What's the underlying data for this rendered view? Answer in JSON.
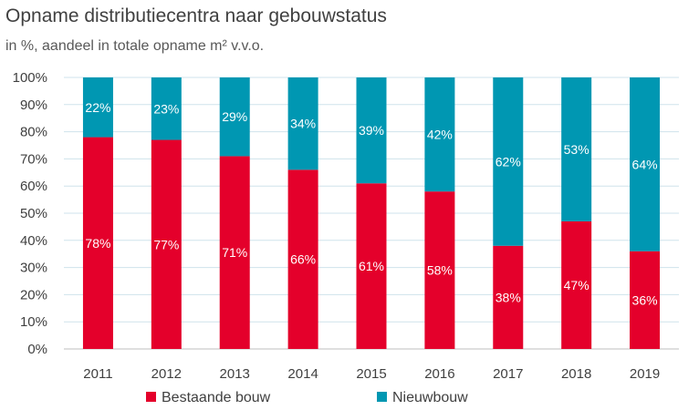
{
  "chart_data": {
    "type": "bar",
    "stacked": true,
    "title": "Opname distributiecentra naar gebouwstatus",
    "subtitle": "in %, aandeel in totale opname m² v.v.o.",
    "categories": [
      "2011",
      "2012",
      "2013",
      "2014",
      "2015",
      "2016",
      "2017",
      "2018",
      "2019"
    ],
    "series": [
      {
        "name": "Bestaande bouw",
        "color": "#e4002b",
        "values": [
          78,
          77,
          71,
          66,
          61,
          58,
          38,
          47,
          36
        ]
      },
      {
        "name": "Nieuwbouw",
        "color": "#0097b2",
        "values": [
          22,
          23,
          29,
          34,
          39,
          42,
          62,
          53,
          64
        ]
      }
    ],
    "ylim": [
      0,
      100
    ],
    "yticks": [
      "0%",
      "10%",
      "20%",
      "30%",
      "40%",
      "50%",
      "60%",
      "70%",
      "80%",
      "90%",
      "100%"
    ],
    "grid": true,
    "legend": "bottom"
  }
}
